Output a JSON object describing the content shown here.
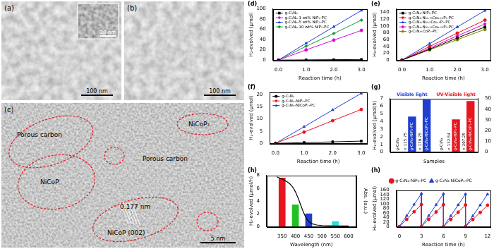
{
  "images": [
    {
      "label": "(a)",
      "scale_bar": "100 nm",
      "inset_scale_bar": "20 nm"
    },
    {
      "label": "(b)",
      "scale_bar": "100 nm"
    },
    {
      "label": "(c)",
      "scale_bar": "5 nm",
      "annotations": [
        "Porous carbon",
        "NiCoP",
        "0.177 nm",
        "NiCoP (002)",
        "NiCoP₂",
        "Porous carbon"
      ]
    }
  ],
  "chart_data": [
    {
      "type": "line",
      "title": "(d)",
      "x_label": "Reaction time (h)",
      "y_label": "H₂-evolved (μmol)",
      "x": [
        0,
        1,
        2,
        3
      ],
      "xlim": [
        -0.2,
        3.2
      ],
      "xticks": [
        {
          "value": 0,
          "label": "0.0"
        },
        {
          "value": 1,
          "label": "1.0"
        },
        {
          "value": 2,
          "label": "2.0"
        },
        {
          "value": 3,
          "label": "3.0"
        }
      ],
      "ylim": [
        0,
        100
      ],
      "yticks": [
        0,
        20,
        40,
        60,
        80,
        100
      ],
      "grid": false,
      "legend": "upper left",
      "series": [
        {
          "name": "g-C₃N₄",
          "color": "#000000",
          "marker": "square",
          "values": [
            0,
            0.4,
            0.8,
            1.2
          ]
        },
        {
          "name": "g-C₃N₄-1 wt% NiP₂-PC",
          "color": "#e000e0",
          "marker": "circle",
          "values": [
            0,
            20,
            39,
            58
          ]
        },
        {
          "name": "g-C₃N₄-5 wt% NiP₂-PC",
          "color": "#1f3fd0",
          "marker": "triangle",
          "values": [
            0,
            33,
            65,
            97
          ]
        },
        {
          "name": "g-C₃N₄-10 wt% NiP₂-PC",
          "color": "#1a9a3a",
          "marker": "diamond",
          "values": [
            0,
            27,
            52,
            78
          ]
        }
      ]
    },
    {
      "type": "line",
      "title": "(e)",
      "x_label": "Reaction time (h)",
      "y_label": "H₂-evolved (μmol)",
      "x": [
        0,
        1,
        2,
        3
      ],
      "xlim": [
        -0.2,
        3.2
      ],
      "xticks": [
        {
          "value": 0,
          "label": "0.0"
        },
        {
          "value": 1,
          "label": "1.0"
        },
        {
          "value": 2,
          "label": "2.0"
        },
        {
          "value": 3,
          "label": "3.0"
        }
      ],
      "ylim": [
        0,
        150
      ],
      "yticks": [
        0,
        20,
        40,
        60,
        80,
        100,
        120,
        140
      ],
      "grid": false,
      "legend": "upper left",
      "series": [
        {
          "name": "g-C₃N₄-NiP₂-PC",
          "color": "#000000",
          "marker": "square",
          "values": [
            0,
            32,
            65,
            97
          ]
        },
        {
          "name": "g-C₃N₄-Ni₀.₇₅Co₀.₂₅P₂-PC",
          "color": "#e8141e",
          "marker": "circle",
          "values": [
            0,
            40,
            79,
            117
          ]
        },
        {
          "name": "g-C₃N₄-Ni₀.₅Co₀.₅P₂-PC",
          "color": "#1f3fd0",
          "marker": "triangle",
          "values": [
            0,
            48,
            97,
            145
          ]
        },
        {
          "name": "g-C₃N₄-Ni₀.₂₅Co₀.₇₅P₂-PC",
          "color": "#e000e0",
          "marker": "diamond",
          "values": [
            0,
            35,
            71,
            106
          ]
        },
        {
          "name": "g-C₃N₄-CoP₂-PC",
          "color": "#808000",
          "marker": "circle",
          "values": [
            0,
            30,
            60,
            90
          ]
        }
      ]
    },
    {
      "type": "line",
      "title": "(f)",
      "x_label": "Reaction time (h)",
      "y_label": "H₂-evolved (μmol)",
      "x": [
        0,
        1,
        2,
        3
      ],
      "xlim": [
        -0.2,
        3.2
      ],
      "xticks": [
        {
          "value": 0,
          "label": "0.0"
        },
        {
          "value": 1,
          "label": "1.0"
        },
        {
          "value": 2,
          "label": "2.0"
        },
        {
          "value": 3,
          "label": "3.0"
        }
      ],
      "ylim": [
        0,
        21
      ],
      "yticks": [
        0,
        5,
        10,
        15,
        20
      ],
      "grid": false,
      "legend": "upper left",
      "series": [
        {
          "name": "g-C₃N₄",
          "color": "#000000",
          "marker": "square",
          "values": [
            0,
            0.3,
            0.6,
            0.9
          ]
        },
        {
          "name": "g-C₃N₄-NiP₂-PC",
          "color": "#e8141e",
          "marker": "circle",
          "values": [
            0,
            4.6,
            9.3,
            13.9
          ]
        },
        {
          "name": "g-C₃N₄-NiCoP₂-PC",
          "color": "#1f3fd0",
          "marker": "triangle",
          "values": [
            0,
            6.8,
            13.7,
            20.5
          ]
        }
      ]
    },
    {
      "type": "bar",
      "title": "(g)",
      "x_label": "Samples",
      "y_label": "H₂-evolved (μmol/h)",
      "categories": [
        "g-C₃N₄",
        "g-C₃N₄-NiP₂-PC",
        "g-C₃N₄-NiCoP₂-PC",
        "g-C₃N₄",
        "g-C₃N₄-NiP₂-PC",
        "g-C₃N₄-NiCoP₂-PC"
      ],
      "ylim": [
        0,
        7
      ],
      "yticks": [
        0,
        1,
        2,
        3,
        4,
        5,
        6,
        7
      ],
      "y2lim": [
        0,
        50
      ],
      "y2ticks": [
        0,
        10,
        20,
        30,
        40,
        50
      ],
      "grid": false,
      "tick_labels": "y",
      "series": [
        {
          "name": "Visible light",
          "color": "#1f3fd0",
          "values": [
            0.04,
            4.63,
            6.83,
            null,
            null,
            null
          ],
          "ratio_labels": [
            null,
            "× 115.75",
            "× 170.75",
            null,
            null,
            null
          ]
        },
        {
          "name": "UV-Visible light",
          "color": "#e8141e",
          "axis": "y2",
          "values": [
            null,
            null,
            null,
            0.23,
            30.48,
            47.67
          ],
          "ratio_labels": [
            null,
            null,
            null,
            null,
            "× 132.54",
            "× 207.25"
          ]
        }
      ]
    },
    {
      "type": "bar",
      "title": "(h)",
      "x_label": "Wavelength (nm)",
      "y_label": "H₂-evolved (μmol/h)",
      "y2_label": "Abs. (a.u.)",
      "xlim": [
        320,
        600
      ],
      "xticks": [
        350,
        400,
        450,
        500,
        550,
        600
      ],
      "ylim": [
        0,
        8
      ],
      "yticks": [
        0,
        2,
        4,
        6,
        8
      ],
      "y2lim": [
        0,
        1
      ],
      "grid": false,
      "series": [
        {
          "type": "bar",
          "x": [
            350,
            400,
            450,
            550
          ],
          "values": [
            7.6,
            3.4,
            2.0,
            0.8
          ],
          "colors": [
            "#e8141e",
            "#22c022",
            "#1f3fd0",
            "#22e0e8"
          ]
        },
        {
          "type": "line",
          "axis": "y2",
          "color": "#000000",
          "x": [
            330,
            340,
            350,
            360,
            370,
            380,
            390,
            400,
            410,
            420,
            430,
            440,
            450,
            460,
            480,
            500,
            550,
            600
          ],
          "values": [
            0.97,
            0.95,
            0.93,
            0.9,
            0.87,
            0.83,
            0.77,
            0.68,
            0.56,
            0.42,
            0.28,
            0.17,
            0.1,
            0.06,
            0.03,
            0.02,
            0.01,
            0.01
          ]
        }
      ]
    },
    {
      "type": "line",
      "title": "(h)",
      "x_label": "Reaction time (h)",
      "y_label": "H₂-evolved (μmol)",
      "x": [
        0,
        1,
        2,
        3,
        3,
        4,
        5,
        6,
        6,
        7,
        8,
        9,
        9,
        10,
        11,
        12
      ],
      "xlim": [
        -0.4,
        12.4
      ],
      "xticks": [
        0,
        3,
        6,
        9,
        12
      ],
      "ylim": [
        0,
        160
      ],
      "yticks": [
        0,
        20,
        40,
        60,
        80,
        100,
        120,
        140,
        160
      ],
      "grid": false,
      "legend": "top",
      "series": [
        {
          "name": "g-C₃N₄-NiP₂-PC",
          "color": "#e8141e",
          "marker": "circle",
          "values": [
            0,
            32,
            65,
            97,
            0,
            32,
            64,
            96,
            0,
            31,
            63,
            95,
            0,
            31,
            62,
            94
          ]
        },
        {
          "name": "g-C₃N₄-NiCoP₂-PC",
          "color": "#1f3fd0",
          "marker": "triangle",
          "values": [
            0,
            48,
            97,
            145,
            0,
            48,
            96,
            144,
            0,
            47,
            95,
            143,
            0,
            47,
            94,
            142
          ]
        }
      ]
    }
  ]
}
